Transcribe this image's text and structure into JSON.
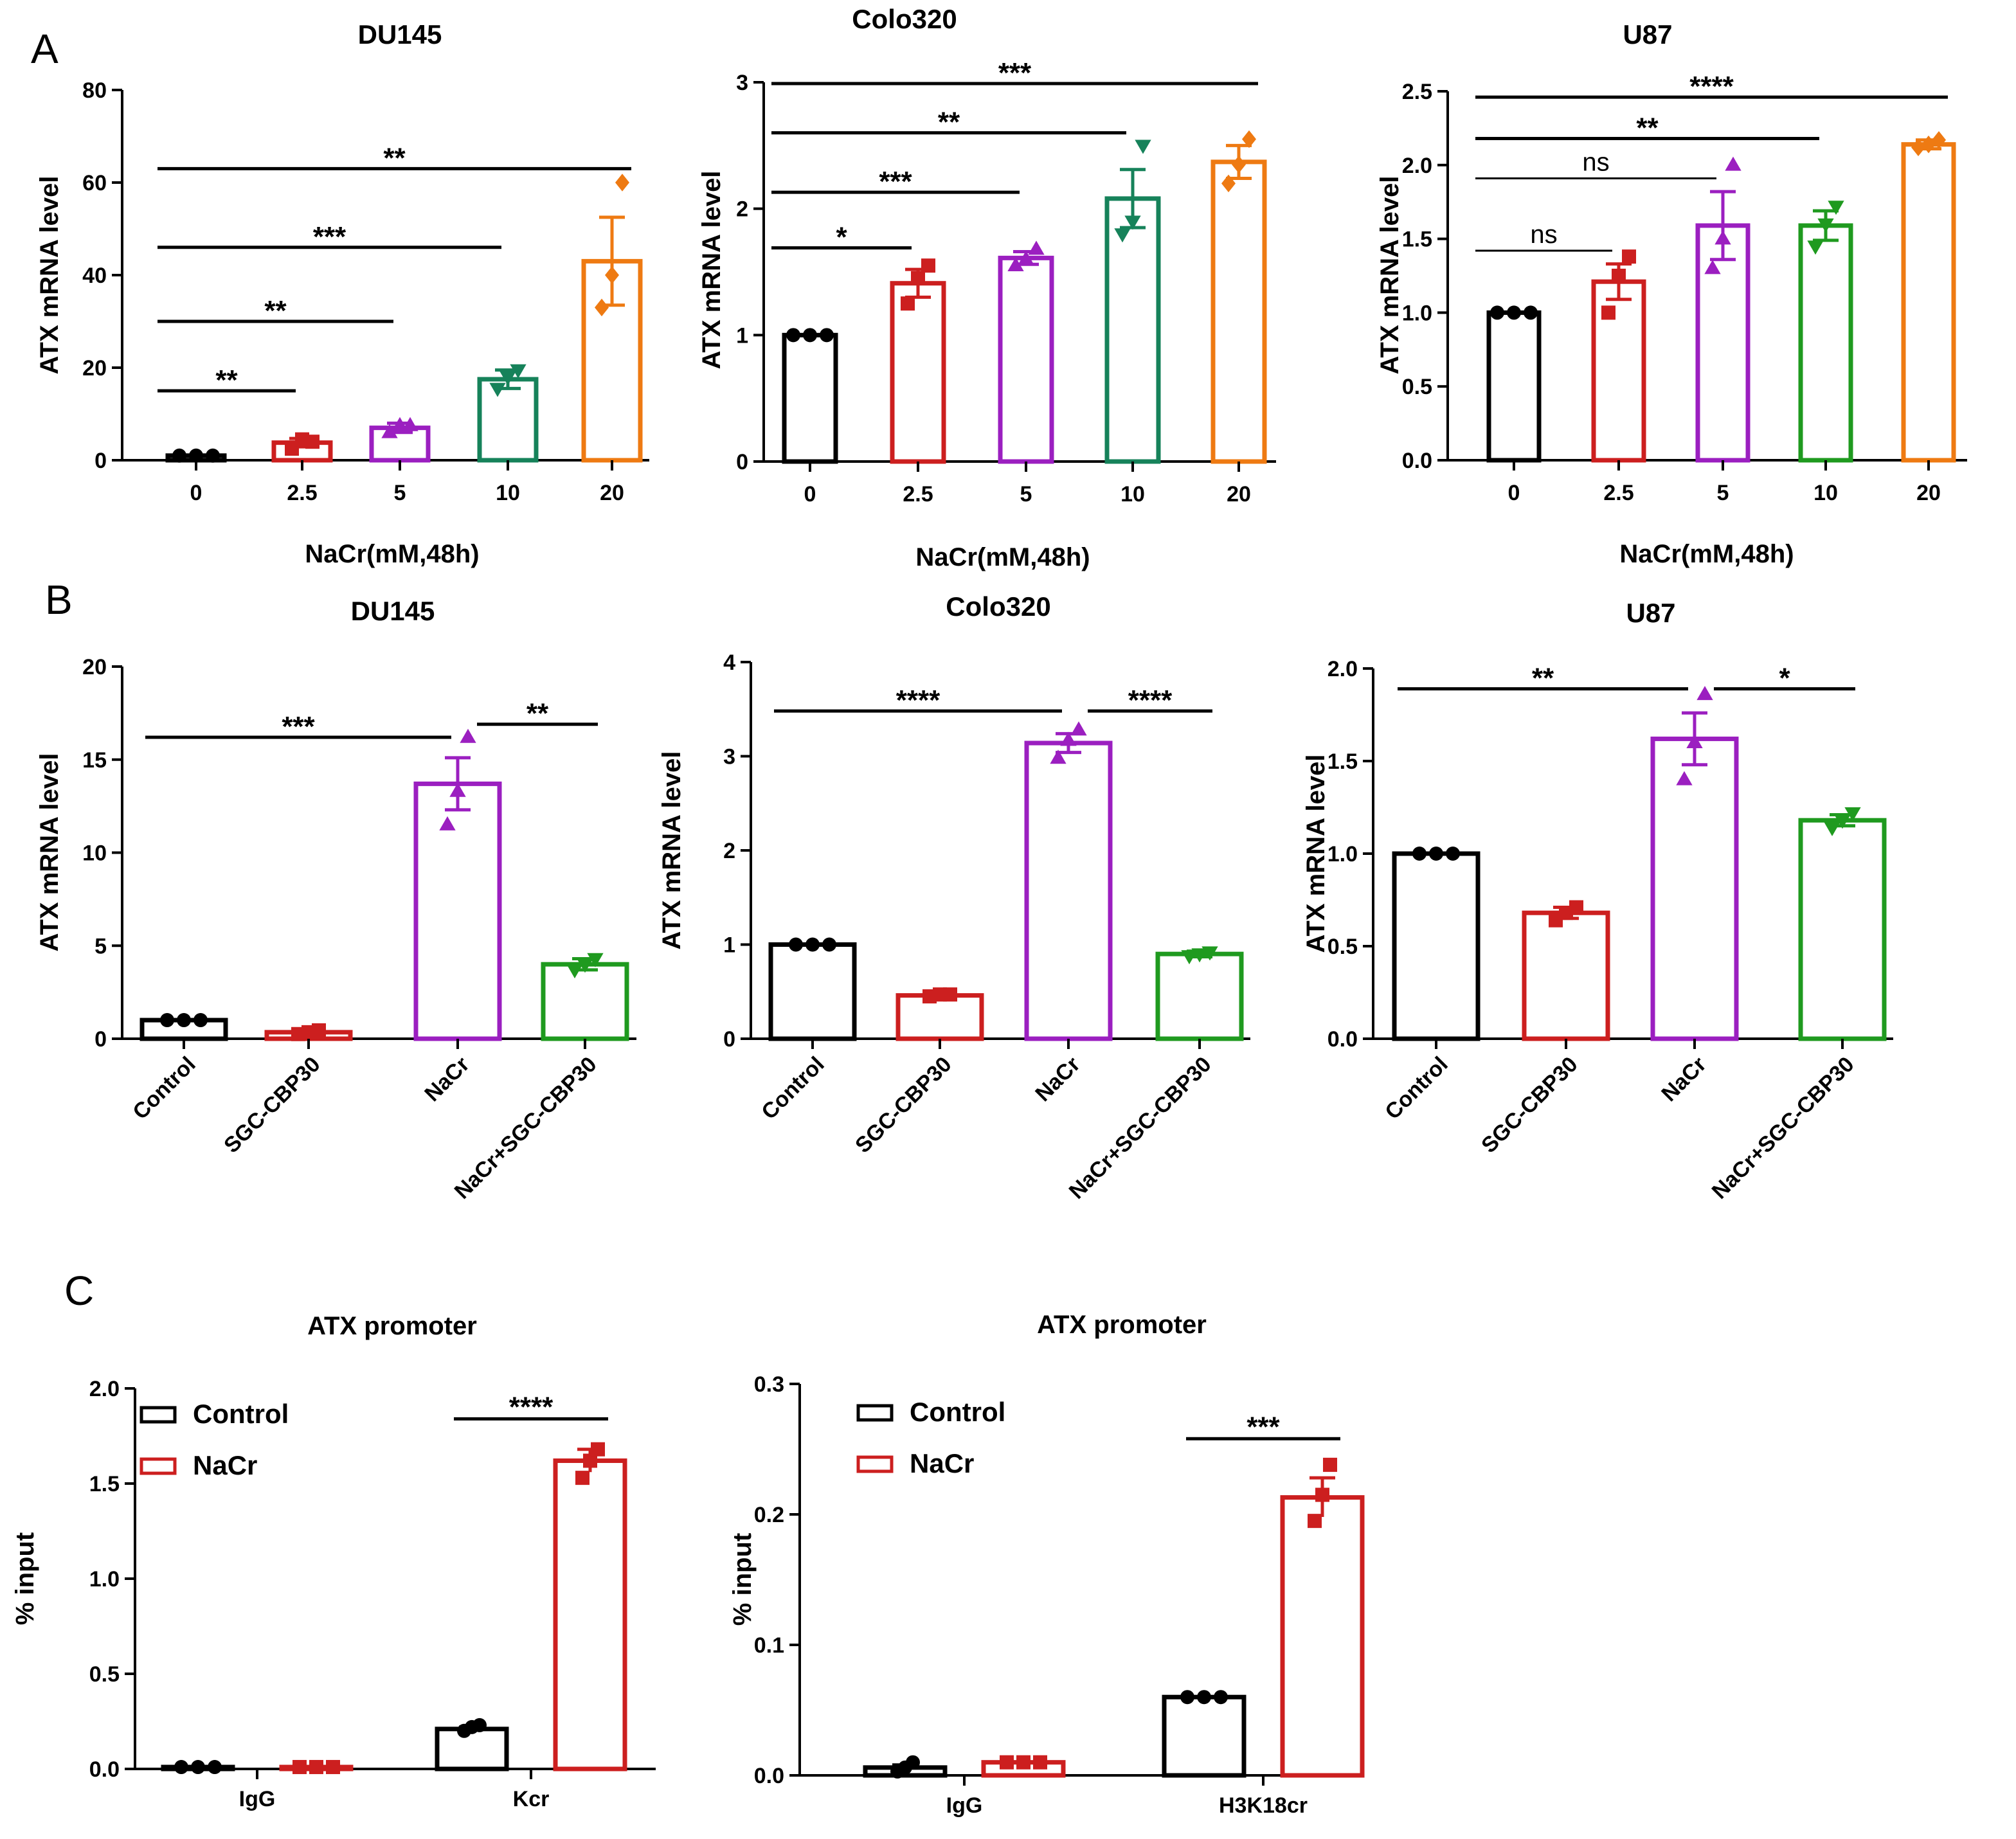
{
  "panel_labels": [
    "A",
    "B",
    "C"
  ],
  "colors": {
    "black": "#000000",
    "red": "#cc1f1f",
    "purple": "#9b1fc0",
    "green_a": "#16825a",
    "green_b": "#1f9a1f",
    "orange": "#ee7a12"
  },
  "chart_data": [
    {
      "id": "a1",
      "type": "bar",
      "panel": "A",
      "title": "DU145",
      "xlabel": "NaCr(mM,48h)",
      "ylabel": "ATX mRNA level",
      "categories": [
        "0",
        "2.5",
        "5",
        "10",
        "20"
      ],
      "values": [
        1,
        3.8,
        7,
        17.5,
        43
      ],
      "errors": [
        0,
        0.9,
        1.0,
        2.0,
        9.5
      ],
      "points": [
        [
          1,
          1,
          1
        ],
        [
          2.5,
          4.5,
          4
        ],
        [
          6,
          7.5,
          7.5
        ],
        [
          15.5,
          18,
          19.5
        ],
        [
          33,
          40,
          60
        ]
      ],
      "markers": [
        "circle",
        "square",
        "triangle-up",
        "triangle-down",
        "diamond"
      ],
      "bar_colors": [
        "black",
        "red",
        "purple",
        "green_a",
        "orange"
      ],
      "ylim": [
        0,
        80
      ],
      "yticks": [
        "0",
        "20",
        "40",
        "60",
        "80"
      ],
      "ytick_values": [
        0,
        20,
        40,
        60,
        80
      ],
      "significance": [
        {
          "from": 0,
          "to": 1,
          "label": "**",
          "level": 15
        },
        {
          "from": 0,
          "to": 2,
          "label": "**",
          "level": 30
        },
        {
          "from": 0,
          "to": 3,
          "label": "***",
          "level": 46
        },
        {
          "from": 0,
          "to": 4,
          "label": "**",
          "level": 63
        }
      ]
    },
    {
      "id": "a2",
      "type": "bar",
      "panel": "A",
      "title": "Colo320",
      "xlabel": "NaCr(mM,48h)",
      "ylabel": "ATX mRNA level",
      "categories": [
        "0",
        "2.5",
        "5",
        "10",
        "20"
      ],
      "values": [
        1,
        1.41,
        1.61,
        2.08,
        2.37
      ],
      "errors": [
        0,
        0.11,
        0.05,
        0.23,
        0.13
      ],
      "points": [
        [
          1,
          1,
          1
        ],
        [
          1.25,
          1.45,
          1.55
        ],
        [
          1.55,
          1.6,
          1.68
        ],
        [
          1.8,
          1.9,
          2.5
        ],
        [
          2.2,
          2.35,
          2.55
        ]
      ],
      "markers": [
        "circle",
        "square",
        "triangle-up",
        "triangle-down",
        "diamond"
      ],
      "bar_colors": [
        "black",
        "red",
        "purple",
        "green_a",
        "orange"
      ],
      "ylim": [
        0,
        3
      ],
      "yticks": [
        "0",
        "1",
        "2",
        "3"
      ],
      "ytick_values": [
        0,
        1,
        2,
        3
      ],
      "significance": [
        {
          "from": 0,
          "to": 1,
          "label": "*",
          "level": 1.69
        },
        {
          "from": 0,
          "to": 2,
          "label": "***",
          "level": 2.13
        },
        {
          "from": 0,
          "to": 3,
          "label": "**",
          "level": 2.6
        },
        {
          "from": 0,
          "to": 4,
          "label": "***",
          "level": 2.99
        }
      ]
    },
    {
      "id": "a3",
      "type": "bar",
      "panel": "A",
      "title": "U87",
      "xlabel": "NaCr(mM,48h)",
      "ylabel": "ATX mRNA level",
      "categories": [
        "0",
        "2.5",
        "5",
        "10",
        "20"
      ],
      "values": [
        1,
        1.21,
        1.59,
        1.59,
        2.14
      ],
      "errors": [
        0,
        0.12,
        0.23,
        0.1,
        0.03
      ],
      "points": [
        [
          1,
          1,
          1
        ],
        [
          1.0,
          1.25,
          1.38
        ],
        [
          1.3,
          1.5,
          2.0
        ],
        [
          1.45,
          1.6,
          1.72
        ],
        [
          2.12,
          2.14,
          2.17
        ]
      ],
      "markers": [
        "circle",
        "square",
        "triangle-up",
        "triangle-down",
        "diamond"
      ],
      "bar_colors": [
        "black",
        "red",
        "purple",
        "green_b",
        "orange"
      ],
      "ylim": [
        0,
        2.5
      ],
      "yticks": [
        "0.0",
        "0.5",
        "1.0",
        "1.5",
        "2.0",
        "2.5"
      ],
      "ytick_values": [
        0,
        0.5,
        1,
        1.5,
        2,
        2.5
      ],
      "significance": [
        {
          "from": 0,
          "to": 1,
          "label": "ns",
          "level": 1.42
        },
        {
          "from": 0,
          "to": 2,
          "label": "ns",
          "level": 1.91
        },
        {
          "from": 0,
          "to": 3,
          "label": "**",
          "level": 2.18
        },
        {
          "from": 0,
          "to": 4,
          "label": "****",
          "level": 2.46
        }
      ]
    },
    {
      "id": "b1",
      "type": "bar",
      "panel": "B",
      "title": "DU145",
      "xlabel": "",
      "ylabel": "ATX mRNA level",
      "categories": [
        "Control",
        "SGC-CBP30",
        "NaCr",
        "NaCr+SGC-CBP30"
      ],
      "values": [
        1,
        0.35,
        13.7,
        4.0
      ],
      "errors": [
        0,
        0.1,
        1.4,
        0.3
      ],
      "points": [
        [
          1,
          1,
          1
        ],
        [
          0.25,
          0.35,
          0.45
        ],
        [
          11.5,
          13.3,
          16.2
        ],
        [
          3.7,
          4.0,
          4.3
        ]
      ],
      "markers": [
        "circle",
        "square",
        "triangle-up",
        "triangle-down"
      ],
      "bar_colors": [
        "black",
        "red",
        "purple",
        "green_b"
      ],
      "ylim": [
        0,
        20
      ],
      "yticks": [
        "0",
        "5",
        "10",
        "15",
        "20"
      ],
      "ytick_values": [
        0,
        5,
        10,
        15,
        20
      ],
      "significance": [
        {
          "from": 0,
          "to": 2,
          "label": "***",
          "level": 16.2
        },
        {
          "from": 2,
          "to": 3,
          "label": "**",
          "level": 16.9
        }
      ]
    },
    {
      "id": "b2",
      "type": "bar",
      "panel": "B",
      "title": "Colo320",
      "xlabel": "",
      "ylabel": "ATX mRNA level",
      "categories": [
        "Control",
        "SGC-CBP30",
        "NaCr",
        "NaCr+SGC-CBP30"
      ],
      "values": [
        1,
        0.46,
        3.14,
        0.9
      ],
      "errors": [
        0,
        0.02,
        0.1,
        0.03
      ],
      "points": [
        [
          1,
          1,
          1
        ],
        [
          0.45,
          0.47,
          0.47
        ],
        [
          2.98,
          3.17,
          3.28
        ],
        [
          0.88,
          0.9,
          0.92
        ]
      ],
      "markers": [
        "circle",
        "square",
        "triangle-up",
        "triangle-down"
      ],
      "bar_colors": [
        "black",
        "red",
        "purple",
        "green_b"
      ],
      "ylim": [
        0,
        4
      ],
      "yticks": [
        "0",
        "1",
        "2",
        "3",
        "4"
      ],
      "ytick_values": [
        0,
        1,
        2,
        3,
        4
      ],
      "significance": [
        {
          "from": 0,
          "to": 2,
          "label": "****",
          "level": 3.48
        },
        {
          "from": 2,
          "to": 3,
          "label": "****",
          "level": 3.48
        }
      ]
    },
    {
      "id": "b3",
      "type": "bar",
      "panel": "B",
      "title": "U87",
      "xlabel": "",
      "ylabel": "ATX mRNA level",
      "categories": [
        "Control",
        "SGC-CBP30",
        "NaCr",
        "NaCr+SGC-CBP30"
      ],
      "values": [
        1,
        0.68,
        1.62,
        1.18
      ],
      "errors": [
        0,
        0.03,
        0.14,
        0.03
      ],
      "points": [
        [
          1,
          1,
          1
        ],
        [
          0.64,
          0.68,
          0.71
        ],
        [
          1.4,
          1.6,
          1.86
        ],
        [
          1.14,
          1.18,
          1.22
        ]
      ],
      "markers": [
        "circle",
        "square",
        "triangle-up",
        "triangle-down"
      ],
      "bar_colors": [
        "black",
        "red",
        "purple",
        "green_b"
      ],
      "ylim": [
        0,
        2.0
      ],
      "yticks": [
        "0.0",
        "0.5",
        "1.0",
        "1.5",
        "2.0"
      ],
      "ytick_values": [
        0,
        0.5,
        1,
        1.5,
        2
      ],
      "significance": [
        {
          "from": 0,
          "to": 2,
          "label": "**",
          "level": 1.89
        },
        {
          "from": 2,
          "to": 3,
          "label": "*",
          "level": 1.89
        }
      ]
    },
    {
      "id": "c1",
      "type": "bar",
      "panel": "C",
      "title": "ATX promoter",
      "xlabel": "",
      "ylabel": "% input",
      "categories": [
        "IgG",
        "Kcr"
      ],
      "series": [
        {
          "name": "Control",
          "color": "black",
          "values": [
            0.01,
            0.21
          ],
          "errors": [
            0,
            0.01
          ],
          "points": [
            [
              0.01,
              0.01,
              0.01
            ],
            [
              0.2,
              0.22,
              0.23
            ]
          ],
          "marker": "circle"
        },
        {
          "name": "NaCr",
          "color": "red",
          "values": [
            0.01,
            1.62
          ],
          "errors": [
            0,
            0.06
          ],
          "points": [
            [
              0.01,
              0.01,
              0.01
            ],
            [
              1.53,
              1.62,
              1.68
            ]
          ],
          "marker": "square"
        }
      ],
      "ylim": [
        0,
        2.0
      ],
      "yticks": [
        "0.0",
        "0.5",
        "1.0",
        "1.5",
        "2.0"
      ],
      "ytick_values": [
        0,
        0.5,
        1,
        1.5,
        2
      ],
      "legend": {
        "position": "top-left",
        "entries": [
          "Control",
          "NaCr"
        ]
      },
      "significance": [
        {
          "group": 1,
          "label": "****",
          "level": 1.84
        }
      ]
    },
    {
      "id": "c2",
      "type": "bar",
      "panel": "C",
      "title": "ATX promoter",
      "xlabel": "",
      "ylabel": "% input",
      "categories": [
        "IgG",
        "H3K18cr"
      ],
      "series": [
        {
          "name": "Control",
          "color": "black",
          "values": [
            0.006,
            0.06
          ],
          "errors": [
            0.002,
            0
          ],
          "points": [
            [
              0.003,
              0.006,
              0.01
            ],
            [
              0.06,
              0.06,
              0.06
            ]
          ],
          "marker": "circle"
        },
        {
          "name": "NaCr",
          "color": "red",
          "values": [
            0.01,
            0.213
          ],
          "errors": [
            0,
            0.015
          ],
          "points": [
            [
              0.01,
              0.01,
              0.01
            ],
            [
              0.195,
              0.215,
              0.238
            ]
          ],
          "marker": "square"
        }
      ],
      "ylim": [
        0,
        0.3
      ],
      "yticks": [
        "0.0",
        "0.1",
        "0.2",
        "0.3"
      ],
      "ytick_values": [
        0,
        0.1,
        0.2,
        0.3
      ],
      "legend": {
        "position": "top-left",
        "entries": [
          "Control",
          "NaCr"
        ]
      },
      "significance": [
        {
          "group": 1,
          "label": "***",
          "level": 0.258
        }
      ]
    }
  ]
}
